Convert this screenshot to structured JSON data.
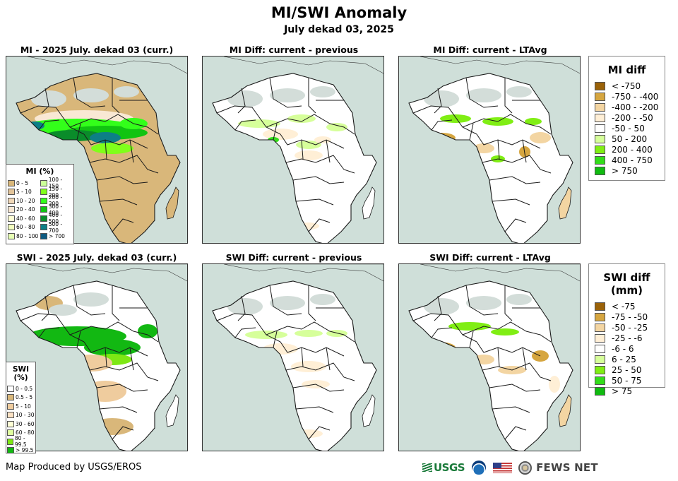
{
  "header": {
    "title": "MI/SWI Anomaly",
    "subtitle": "July dekad 03, 2025"
  },
  "panels": [
    {
      "id": "mi-current",
      "title": "MI - 2025 July. dekad 03 (curr.)",
      "variable": "MI",
      "kind": "current"
    },
    {
      "id": "mi-diff-prev",
      "title": "MI Diff: current - previous",
      "variable": "MI",
      "kind": "diff-previous"
    },
    {
      "id": "mi-diff-lta",
      "title": "MI Diff: current - LTAvg",
      "variable": "MI",
      "kind": "diff-ltavg"
    },
    {
      "id": "swi-current",
      "title": "SWI - 2025 July. dekad 03 (curr.)",
      "variable": "SWI",
      "kind": "current"
    },
    {
      "id": "swi-diff-prev",
      "title": "SWI Diff: current - previous",
      "variable": "SWI",
      "kind": "diff-previous"
    },
    {
      "id": "swi-diff-lta",
      "title": "SWI Diff: current - LTAvg",
      "variable": "SWI",
      "kind": "diff-ltavg"
    }
  ],
  "legends": {
    "mi_current": {
      "title": "MI (%)",
      "items": [
        {
          "label": "0 - 5",
          "color": "#d9b77a"
        },
        {
          "label": "5 - 10",
          "color": "#e2c49a"
        },
        {
          "label": "10 - 20",
          "color": "#f1d8b8"
        },
        {
          "label": "20 - 40",
          "color": "#f9e8d4"
        },
        {
          "label": "40 - 60",
          "color": "#ffffd6"
        },
        {
          "label": "60 - 80",
          "color": "#f4ffc0"
        },
        {
          "label": "80 - 100",
          "color": "#e6ffb4"
        },
        {
          "label": "100 - 150",
          "color": "#ccff99"
        },
        {
          "label": "150 - 200",
          "color": "#80ff1a"
        },
        {
          "label": "200 - 300",
          "color": "#33ff1a"
        },
        {
          "label": "300 - 400",
          "color": "#11c411"
        },
        {
          "label": "400 - 500",
          "color": "#0a8c2a"
        },
        {
          "label": "500 - 700",
          "color": "#0d7f86"
        },
        {
          "label": "> 700",
          "color": "#0d5a80"
        }
      ]
    },
    "swi_current": {
      "title": "SWI (%)",
      "items": [
        {
          "label": "0 - 0.5",
          "color": "#ffffff"
        },
        {
          "label": "0.5 - 5",
          "color": "#d9b77a"
        },
        {
          "label": "5 - 10",
          "color": "#efcc9e"
        },
        {
          "label": "10 - 30",
          "color": "#fbe2c4"
        },
        {
          "label": "30 - 60",
          "color": "#ffffd6"
        },
        {
          "label": "60 - 80",
          "color": "#e0ffa0"
        },
        {
          "label": "80 - 99.5",
          "color": "#7ee815"
        },
        {
          "label": "> 99.5",
          "color": "#12b812"
        }
      ]
    },
    "mi_diff": {
      "title": "MI diff",
      "items": [
        {
          "label": "< -750",
          "color": "#9a6209"
        },
        {
          "label": "-750 - -400",
          "color": "#d6a640"
        },
        {
          "label": "-400 - -200",
          "color": "#f3d5a2"
        },
        {
          "label": "-200 - -50",
          "color": "#ffefd6"
        },
        {
          "label": "-50 - 50",
          "color": "#ffffff"
        },
        {
          "label": "50 - 200",
          "color": "#d6ff9a"
        },
        {
          "label": "200 - 400",
          "color": "#80ee14"
        },
        {
          "label": "400 - 750",
          "color": "#33dd1a"
        },
        {
          "label": "> 750",
          "color": "#10bb10"
        }
      ]
    },
    "swi_diff": {
      "title": "SWI diff (mm)",
      "items": [
        {
          "label": "< -75",
          "color": "#9a6209"
        },
        {
          "label": "-75 - -50",
          "color": "#d6a640"
        },
        {
          "label": "-50 - -25",
          "color": "#f3d5a2"
        },
        {
          "label": "-25 - -6",
          "color": "#ffefd6"
        },
        {
          "label": "-6 - 6",
          "color": "#ffffff"
        },
        {
          "label": "6 - 25",
          "color": "#d6ff9a"
        },
        {
          "label": "25 - 50",
          "color": "#80ee14"
        },
        {
          "label": "50 - 75",
          "color": "#33dd1a"
        },
        {
          "label": "> 75",
          "color": "#10bb10"
        }
      ]
    }
  },
  "map_colors": {
    "ocean": "#cfdfd9",
    "no_data": "#d3ddd9",
    "border": "#1a1a1a"
  },
  "footer": {
    "credit": "Map Produced by USGS/EROS",
    "logos": {
      "usgs": "USGS",
      "noaa": "noaa-logo",
      "flag": "us-flag",
      "seal": "state-dept-seal",
      "fews": "FEWS NET"
    }
  }
}
